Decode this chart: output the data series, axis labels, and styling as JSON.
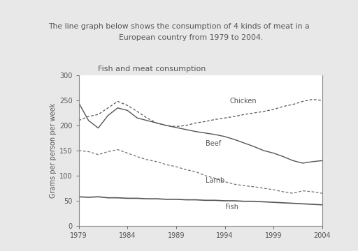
{
  "title": "Fish and meat consumption",
  "ylabel": "Grams per person per week",
  "x_ticks": [
    1979,
    1984,
    1989,
    1994,
    1999,
    2004
  ],
  "ylim": [
    0,
    300
  ],
  "yticks": [
    0,
    50,
    100,
    150,
    200,
    250,
    300
  ],
  "header_text": "The line graph below shows the consumption of 4 kinds of meat in a\n          European country from 1979 to 2004.",
  "chicken_x": [
    1979,
    1980,
    1981,
    1982,
    1983,
    1984,
    1985,
    1986,
    1987,
    1988,
    1989,
    1990,
    1991,
    1992,
    1993,
    1994,
    1995,
    1996,
    1997,
    1998,
    1999,
    2000,
    2001,
    2002,
    2003,
    2004
  ],
  "chicken_y": [
    210,
    218,
    222,
    235,
    248,
    240,
    228,
    215,
    205,
    200,
    198,
    200,
    205,
    208,
    212,
    215,
    218,
    222,
    225,
    228,
    232,
    238,
    242,
    248,
    252,
    250
  ],
  "beef_x": [
    1979,
    1980,
    1981,
    1982,
    1983,
    1984,
    1985,
    1986,
    1987,
    1988,
    1989,
    1990,
    1991,
    1992,
    1993,
    1994,
    1995,
    1996,
    1997,
    1998,
    1999,
    2000,
    2001,
    2002,
    2003,
    2004
  ],
  "beef_y": [
    245,
    210,
    195,
    220,
    235,
    230,
    215,
    210,
    205,
    200,
    196,
    192,
    188,
    185,
    182,
    178,
    172,
    165,
    158,
    150,
    145,
    138,
    130,
    125,
    128,
    130
  ],
  "lamb_x": [
    1979,
    1980,
    1981,
    1982,
    1983,
    1984,
    1985,
    1986,
    1987,
    1988,
    1989,
    1990,
    1991,
    1992,
    1993,
    1994,
    1995,
    1996,
    1997,
    1998,
    1999,
    2000,
    2001,
    2002,
    2003,
    2004
  ],
  "lamb_y": [
    150,
    148,
    142,
    148,
    152,
    145,
    138,
    132,
    128,
    122,
    118,
    112,
    108,
    100,
    95,
    88,
    83,
    80,
    78,
    75,
    72,
    68,
    65,
    70,
    68,
    65
  ],
  "fish_x": [
    1979,
    1980,
    1981,
    1982,
    1983,
    1984,
    1985,
    1986,
    1987,
    1988,
    1989,
    1990,
    1991,
    1992,
    1993,
    1994,
    1995,
    1996,
    1997,
    1998,
    1999,
    2000,
    2001,
    2002,
    2003,
    2004
  ],
  "fish_y": [
    58,
    57,
    58,
    56,
    56,
    55,
    55,
    54,
    54,
    53,
    53,
    52,
    52,
    51,
    51,
    50,
    50,
    49,
    49,
    48,
    47,
    46,
    45,
    44,
    43,
    42
  ],
  "line_color": "#555555",
  "bg_color": "#ffffff",
  "fig_bg": "#e8e8e8",
  "text_box_color": "#e8e8e8"
}
